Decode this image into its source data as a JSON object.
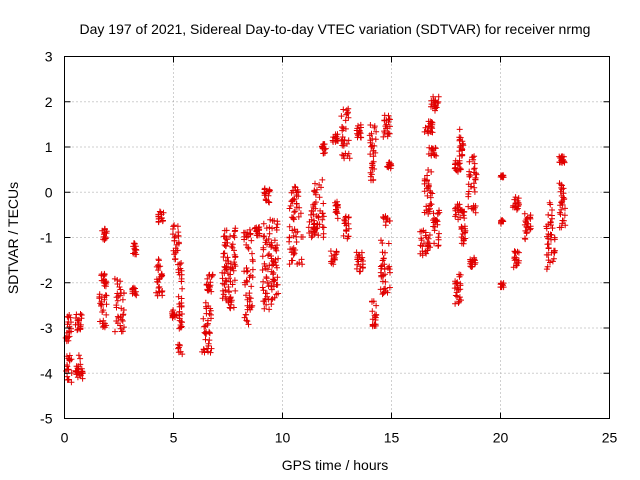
{
  "chart_data": {
    "type": "scatter",
    "title": "Day 197 of 2021, Sidereal Day-to-day VTEC variation (SDTVAR) for receiver nrmg",
    "xlabel": "GPS time / hours",
    "ylabel": "SDTVAR / TECUs",
    "xlim": [
      0,
      25
    ],
    "ylim": [
      -5,
      3
    ],
    "xticks": [
      0,
      5,
      10,
      15,
      20,
      25
    ],
    "yticks": [
      -5,
      -4,
      -3,
      -2,
      -1,
      0,
      1,
      2,
      3
    ],
    "grid": true,
    "marker": "plus",
    "color": "#e00000",
    "clusters": [
      {
        "x": [
          0.05,
          0.35
        ],
        "y": [
          -4.2,
          -3.6
        ]
      },
      {
        "x": [
          0.05,
          0.3
        ],
        "y": [
          -3.3,
          -2.7
        ]
      },
      {
        "x": [
          0.5,
          0.85
        ],
        "y": [
          -4.15,
          -3.55
        ]
      },
      {
        "x": [
          0.5,
          0.8
        ],
        "y": [
          -3.05,
          -2.65
        ]
      },
      {
        "x": [
          1.6,
          1.95
        ],
        "y": [
          -3.0,
          -2.2
        ]
      },
      {
        "x": [
          1.65,
          1.95
        ],
        "y": [
          -2.1,
          -1.8
        ]
      },
      {
        "x": [
          1.7,
          1.95
        ],
        "y": [
          -1.1,
          -0.8
        ]
      },
      {
        "x": [
          2.3,
          2.75
        ],
        "y": [
          -3.1,
          -1.9
        ]
      },
      {
        "x": [
          3.15,
          3.3
        ],
        "y": [
          -1.4,
          -1.1
        ]
      },
      {
        "x": [
          3.1,
          3.3
        ],
        "y": [
          -2.3,
          -2.1
        ]
      },
      {
        "x": [
          4.2,
          4.5
        ],
        "y": [
          -2.3,
          -1.4
        ]
      },
      {
        "x": [
          4.3,
          4.55
        ],
        "y": [
          -0.7,
          -0.4
        ]
      },
      {
        "x": [
          4.95,
          5.25
        ],
        "y": [
          -1.5,
          -0.7
        ]
      },
      {
        "x": [
          4.9,
          5.15
        ],
        "y": [
          -2.8,
          -2.6
        ]
      },
      {
        "x": [
          5.2,
          5.4
        ],
        "y": [
          -3.6,
          -1.5
        ]
      },
      {
        "x": [
          6.3,
          6.75
        ],
        "y": [
          -3.65,
          -2.4
        ]
      },
      {
        "x": [
          6.5,
          6.8
        ],
        "y": [
          -2.2,
          -1.8
        ]
      },
      {
        "x": [
          7.2,
          7.5
        ],
        "y": [
          -2.4,
          -0.8
        ]
      },
      {
        "x": [
          7.5,
          7.85
        ],
        "y": [
          -2.6,
          -0.75
        ]
      },
      {
        "x": [
          8.2,
          8.65
        ],
        "y": [
          -3.0,
          -0.8
        ]
      },
      {
        "x": [
          8.7,
          8.95
        ],
        "y": [
          -1.0,
          -0.7
        ]
      },
      {
        "x": [
          9.05,
          9.5
        ],
        "y": [
          -2.6,
          -0.5
        ]
      },
      {
        "x": [
          9.15,
          9.45
        ],
        "y": [
          -0.25,
          0.1
        ]
      },
      {
        "x": [
          9.5,
          9.8
        ],
        "y": [
          -2.4,
          -0.6
        ]
      },
      {
        "x": [
          10.3,
          10.95
        ],
        "y": [
          -1.6,
          -0.3
        ]
      },
      {
        "x": [
          10.4,
          10.75
        ],
        "y": [
          -0.3,
          0.15
        ]
      },
      {
        "x": [
          11.2,
          11.5
        ],
        "y": [
          -1.0,
          -0.4
        ]
      },
      {
        "x": [
          11.4,
          11.9
        ],
        "y": [
          -1.0,
          0.3
        ]
      },
      {
        "x": [
          11.8,
          12.0
        ],
        "y": [
          0.85,
          1.1
        ]
      },
      {
        "x": [
          12.2,
          12.5
        ],
        "y": [
          -1.6,
          -1.3
        ]
      },
      {
        "x": [
          12.3,
          12.55
        ],
        "y": [
          1.1,
          1.3
        ]
      },
      {
        "x": [
          12.4,
          12.6
        ],
        "y": [
          -0.6,
          -0.2
        ]
      },
      {
        "x": [
          12.7,
          13.1
        ],
        "y": [
          0.7,
          1.85
        ]
      },
      {
        "x": [
          12.8,
          13.05
        ],
        "y": [
          -1.05,
          -0.5
        ]
      },
      {
        "x": [
          13.4,
          13.7
        ],
        "y": [
          -1.8,
          -1.3
        ]
      },
      {
        "x": [
          13.4,
          13.65
        ],
        "y": [
          1.2,
          1.5
        ]
      },
      {
        "x": [
          14.0,
          14.3
        ],
        "y": [
          0.2,
          1.5
        ]
      },
      {
        "x": [
          14.1,
          14.3
        ],
        "y": [
          -3.0,
          -2.4
        ]
      },
      {
        "x": [
          14.5,
          14.95
        ],
        "y": [
          -2.3,
          -0.5
        ]
      },
      {
        "x": [
          14.6,
          14.95
        ],
        "y": [
          1.2,
          1.7
        ]
      },
      {
        "x": [
          14.8,
          15.0
        ],
        "y": [
          0.5,
          0.7
        ]
      },
      {
        "x": [
          16.3,
          16.8
        ],
        "y": [
          -1.4,
          -0.8
        ]
      },
      {
        "x": [
          16.5,
          16.9
        ],
        "y": [
          -0.5,
          0.5
        ]
      },
      {
        "x": [
          16.5,
          16.9
        ],
        "y": [
          1.3,
          1.6
        ]
      },
      {
        "x": [
          16.7,
          17.05
        ],
        "y": [
          0.8,
          1.0
        ]
      },
      {
        "x": [
          16.8,
          17.2
        ],
        "y": [
          1.8,
          2.15
        ]
      },
      {
        "x": [
          16.9,
          17.2
        ],
        "y": [
          -1.2,
          -0.4
        ]
      },
      {
        "x": [
          17.9,
          18.2
        ],
        "y": [
          0.4,
          0.75
        ]
      },
      {
        "x": [
          17.9,
          18.4
        ],
        "y": [
          -0.6,
          -0.2
        ]
      },
      {
        "x": [
          17.9,
          18.2
        ],
        "y": [
          -2.5,
          -1.8
        ]
      },
      {
        "x": [
          18.1,
          18.3
        ],
        "y": [
          0.8,
          1.4
        ]
      },
      {
        "x": [
          18.2,
          18.4
        ],
        "y": [
          -1.2,
          -0.7
        ]
      },
      {
        "x": [
          18.5,
          18.9
        ],
        "y": [
          -0.5,
          0.8
        ]
      },
      {
        "x": [
          18.6,
          18.9
        ],
        "y": [
          -1.7,
          -1.4
        ]
      },
      {
        "x": [
          20.0,
          20.15
        ],
        "y": [
          -2.1,
          -2.0
        ]
      },
      {
        "x": [
          20.0,
          20.15
        ],
        "y": [
          0.3,
          0.4
        ]
      },
      {
        "x": [
          20.0,
          20.15
        ],
        "y": [
          -0.7,
          -0.6
        ]
      },
      {
        "x": [
          20.5,
          20.85
        ],
        "y": [
          -0.4,
          -0.1
        ]
      },
      {
        "x": [
          20.6,
          20.85
        ],
        "y": [
          -1.7,
          -1.3
        ]
      },
      {
        "x": [
          21.1,
          21.4
        ],
        "y": [
          -1.1,
          -0.4
        ]
      },
      {
        "x": [
          22.1,
          22.5
        ],
        "y": [
          -1.7,
          -0.2
        ]
      },
      {
        "x": [
          22.7,
          23.0
        ],
        "y": [
          -0.8,
          0.2
        ]
      },
      {
        "x": [
          22.6,
          22.95
        ],
        "y": [
          0.6,
          0.8
        ]
      }
    ]
  }
}
